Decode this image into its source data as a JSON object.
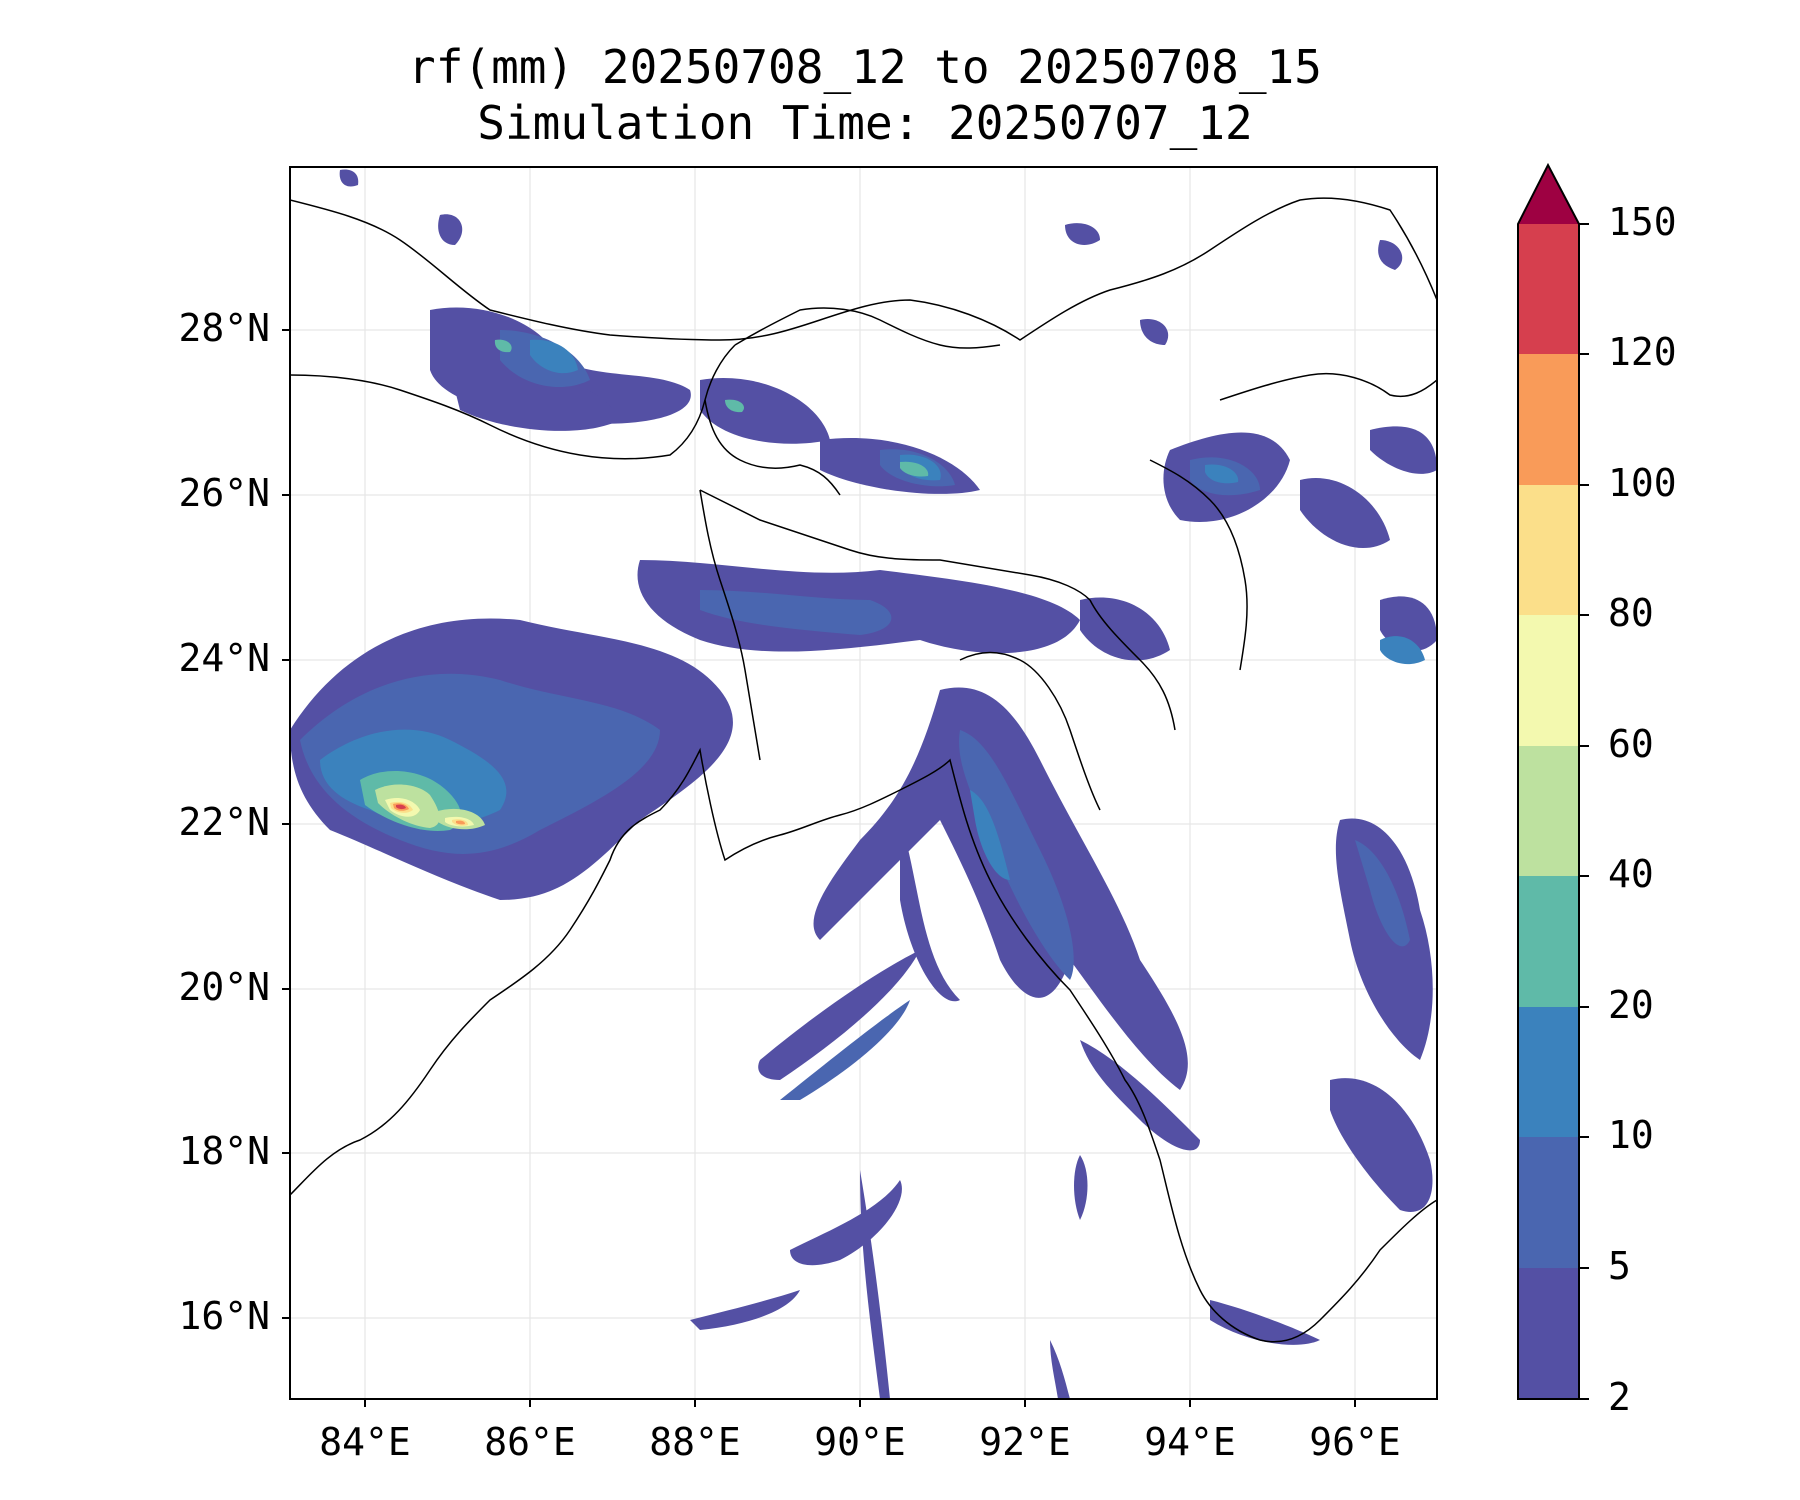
{
  "title": {
    "line1": "rf(mm) 20250708_12 to 20250708_15",
    "line2": "Simulation Time: 20250707_12"
  },
  "map": {
    "lon_range": [
      83.1,
      97.0
    ],
    "lat_range": [
      15.0,
      30.0
    ],
    "lat_ticks": [
      "28°N",
      "26°N",
      "24°N",
      "22°N",
      "20°N",
      "18°N",
      "16°N"
    ],
    "lon_ticks": [
      "84°E",
      "86°E",
      "88°E",
      "90°E",
      "92°E",
      "94°E",
      "96°E"
    ],
    "gridlines": true
  },
  "colorbar": {
    "levels": [
      "2",
      "5",
      "10",
      "20",
      "40",
      "60",
      "80",
      "100",
      "120",
      "150"
    ],
    "colors": [
      "#5450a4",
      "#4a66b0",
      "#3b82bd",
      "#5fbaa8",
      "#bde19f",
      "#f3f9af",
      "#fbdf8a",
      "#f99b59",
      "#d63f4e",
      "#9e0142"
    ],
    "extend": "max"
  },
  "chart_data": {
    "type": "heatmap",
    "variable": "rf(mm)",
    "period": "20250708_12 to 20250708_15",
    "simulation_time": "20250707_12",
    "units": "mm",
    "levels": [
      2,
      5,
      10,
      20,
      40,
      60,
      80,
      100,
      120,
      150
    ],
    "max_rainfall_center": {
      "lon": 84.4,
      "lat": 21.9,
      "min_value": 120
    }
  }
}
